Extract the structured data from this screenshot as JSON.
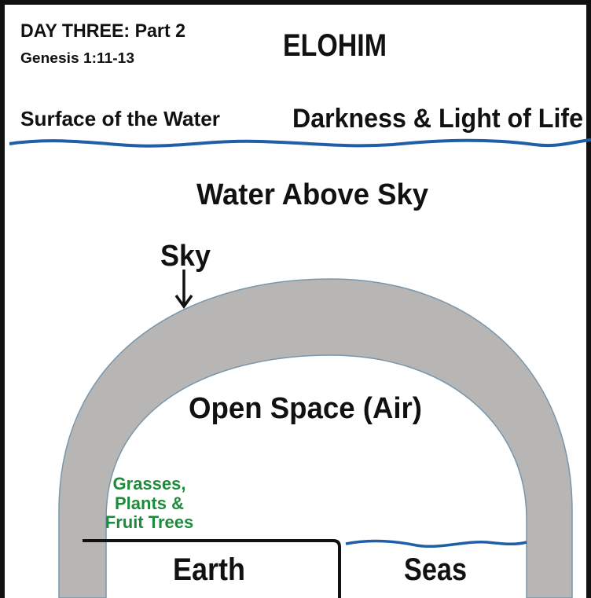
{
  "header": {
    "title": "DAY THREE: Part 2",
    "reference": "Genesis 1:11-13",
    "name": "ELOHIM"
  },
  "labels": {
    "surface": "Surface of the Water",
    "darkness": "Darkness & Light of Life",
    "water_above": "Water Above Sky",
    "sky": "Sky",
    "open_space": "Open Space (Air)",
    "plants": [
      "Grasses,",
      "Plants &",
      "Fruit Trees"
    ],
    "earth": "Earth",
    "seas": "Seas"
  }
}
